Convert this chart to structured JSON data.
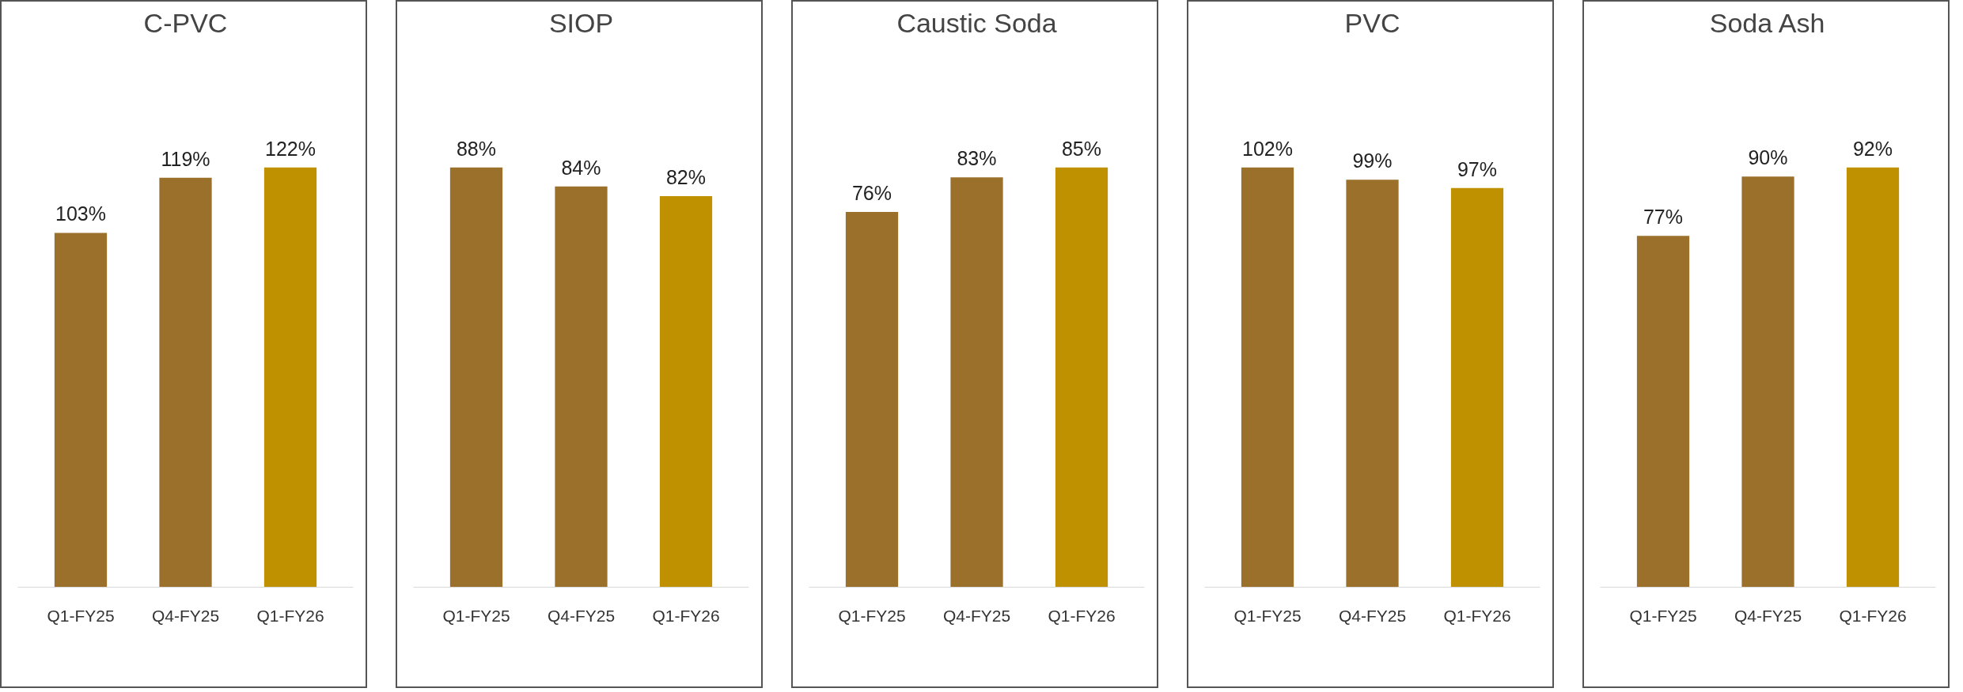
{
  "chart_data": [
    {
      "type": "bar",
      "title": "C-PVC",
      "categories": [
        "Q1-FY25",
        "Q4-FY25",
        "Q1-FY26"
      ],
      "values": [
        103,
        119,
        122
      ],
      "value_labels": [
        "103%",
        "119%",
        "122%"
      ],
      "colors": [
        "#9a702b",
        "#9a702b",
        "#bf9000"
      ],
      "tick_labels": "x"
    },
    {
      "type": "bar",
      "title": "SIOP",
      "categories": [
        "Q1-FY25",
        "Q4-FY25",
        "Q1-FY26"
      ],
      "values": [
        88,
        84,
        82
      ],
      "value_labels": [
        "88%",
        "84%",
        "82%"
      ],
      "colors": [
        "#9a702b",
        "#9a702b",
        "#bf9000"
      ],
      "tick_labels": "x"
    },
    {
      "type": "bar",
      "title": "Caustic Soda",
      "categories": [
        "Q1-FY25",
        "Q4-FY25",
        "Q1-FY26"
      ],
      "values": [
        76,
        83,
        85
      ],
      "value_labels": [
        "76%",
        "83%",
        "85%"
      ],
      "colors": [
        "#9a702b",
        "#9a702b",
        "#bf9000"
      ],
      "tick_labels": "x"
    },
    {
      "type": "bar",
      "title": "PVC",
      "categories": [
        "Q1-FY25",
        "Q4-FY25",
        "Q1-FY26"
      ],
      "values": [
        102,
        99,
        97
      ],
      "value_labels": [
        "102%",
        "99%",
        "97%"
      ],
      "colors": [
        "#9a702b",
        "#9a702b",
        "#bf9000"
      ],
      "tick_labels": "x"
    },
    {
      "type": "bar",
      "title": "Soda Ash",
      "categories": [
        "Q1-FY25",
        "Q4-FY25",
        "Q1-FY26"
      ],
      "values": [
        77,
        90,
        92
      ],
      "value_labels": [
        "77%",
        "90%",
        "92%"
      ],
      "colors": [
        "#9a702b",
        "#9a702b",
        "#bf9000"
      ],
      "tick_labels": "x"
    }
  ]
}
